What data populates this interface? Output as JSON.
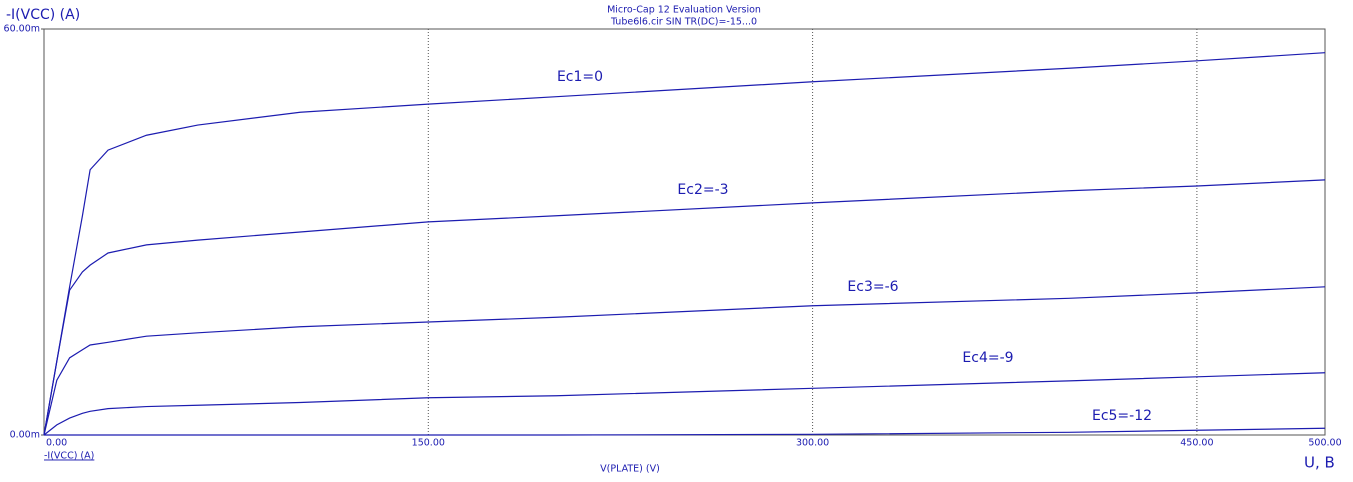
{
  "chart_data": {
    "type": "line",
    "title": "Micro-Cap 12 Evaluation Version",
    "subtitle": "Tube6l6.cir SIN TR(DC)=-15...0",
    "y_label": "-I(VCC) (A)",
    "x_label": "V(PLATE) (V)",
    "expression_label": "-I(VCC) (A)",
    "x_unit_label": "U, B",
    "x": [
      0,
      5,
      10,
      15,
      18,
      25,
      40,
      60,
      100,
      150,
      200,
      300,
      400,
      450,
      500
    ],
    "series": [
      {
        "name": "Ec1=0",
        "color": "#1c1cb0",
        "values": [
          0,
          0.0109,
          0.0219,
          0.0324,
          0.0392,
          0.0421,
          0.0443,
          0.0458,
          0.0477,
          0.0489,
          0.05,
          0.0522,
          0.0542,
          0.0553,
          0.0565
        ]
      },
      {
        "name": "Ec2=-3",
        "color": "#1c1cb0",
        "values": [
          0,
          0.0109,
          0.0214,
          0.0241,
          0.0251,
          0.0269,
          0.0281,
          0.0288,
          0.03,
          0.0315,
          0.0324,
          0.0343,
          0.0361,
          0.0368,
          0.0377
        ]
      },
      {
        "name": "Ec3=-6",
        "color": "#1c1cb0",
        "values": [
          0,
          0.0081,
          0.0114,
          0.0126,
          0.0133,
          0.0137,
          0.0146,
          0.0151,
          0.016,
          0.0167,
          0.0174,
          0.0191,
          0.0202,
          0.021,
          0.0219
        ]
      },
      {
        "name": "Ec4=-9",
        "color": "#1c1cb0",
        "values": [
          0,
          0.0015,
          0.0025,
          0.0032,
          0.0035,
          0.0039,
          0.0042,
          0.0044,
          0.0048,
          0.0055,
          0.0058,
          0.0069,
          0.008,
          0.0086,
          0.0092
        ]
      },
      {
        "name": "Ec5=-12",
        "color": "#1c1cb0",
        "values": [
          0,
          0,
          0,
          0,
          0,
          0,
          0,
          0,
          0,
          0,
          0,
          0.0001,
          0.0004,
          0.0007,
          0.001
        ]
      }
    ],
    "xlim": [
      0,
      500
    ],
    "xticks": [
      {
        "value": 0,
        "label": "0.00"
      },
      {
        "value": 150,
        "label": "150.00"
      },
      {
        "value": 300,
        "label": "300.00"
      },
      {
        "value": 450,
        "label": "450.00"
      },
      {
        "value": 500,
        "label": "500.00"
      }
    ],
    "ylim": [
      0,
      0.06
    ],
    "yticks": [
      {
        "value": 0,
        "label": "0.00m"
      },
      {
        "value": 0.06,
        "label": "60.00m"
      }
    ],
    "grid": true
  }
}
